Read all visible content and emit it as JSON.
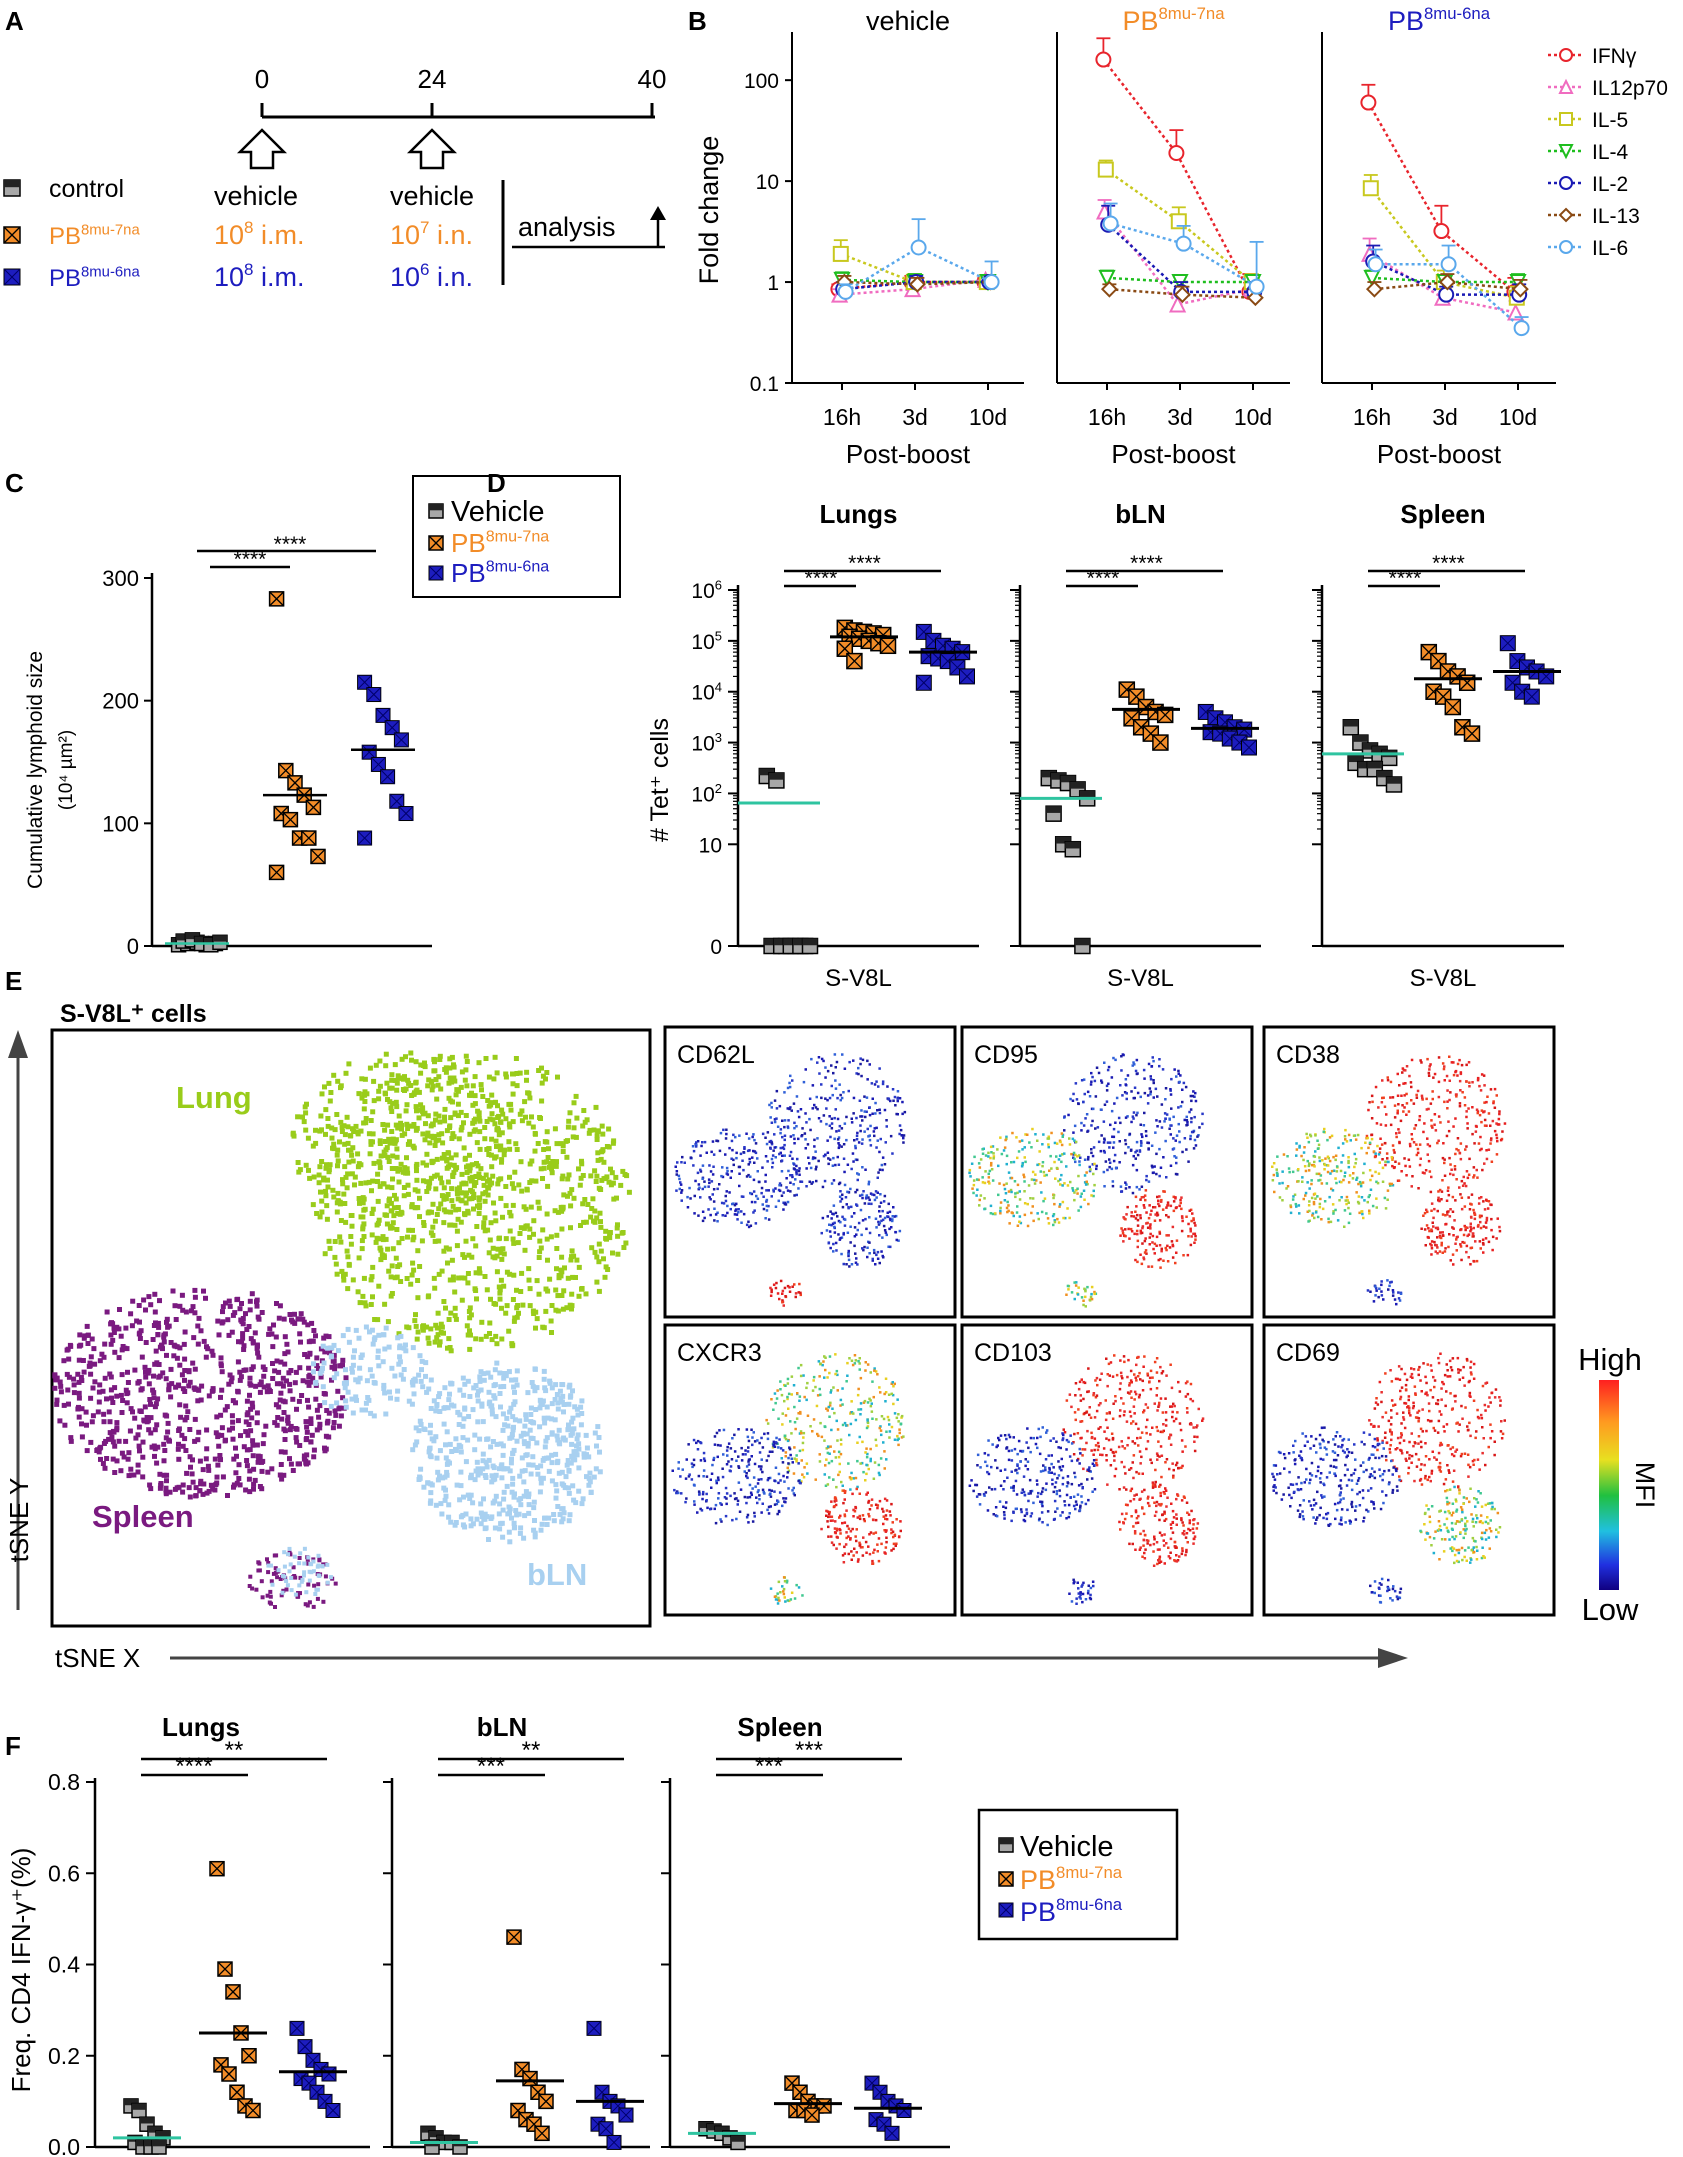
{
  "panels": {
    "A": "A",
    "B": "B",
    "C": "C",
    "D": "D",
    "E": "E",
    "F": "F"
  },
  "colors": {
    "control": "#a8a8a8",
    "pb7": "#f28c28",
    "pb6": "#1d1dbf",
    "mean": "#2ec4a0",
    "lung": "#99cc1a",
    "spleen": "#7a1a80",
    "bln": "#a8d0f0",
    "ifng": "#e8242c",
    "il12p70": "#f06cc0",
    "il5": "#c8c81e",
    "il4": "#1ebe1e",
    "il2": "#1a1ab4",
    "il13": "#8a4a14",
    "il6": "#5aa8ec"
  },
  "panel_a": {
    "timeline": {
      "t0": "0",
      "t24": "24",
      "t40": "40"
    },
    "groups": [
      {
        "name": "control",
        "prime_pre": "",
        "prime_exp": "",
        "prime_route": "",
        "boost_pre": "",
        "boost_exp": "",
        "boost_route": ""
      },
      {
        "name": "PB",
        "sup": "8mu-7na",
        "prime_pre": "10",
        "prime_exp": "8",
        "prime_route": " i.m.",
        "boost_pre": "10",
        "boost_exp": "7",
        "boost_route": " i.n."
      },
      {
        "name": "PB",
        "sup": "8mu-6na",
        "prime_pre": "10",
        "prime_exp": "8",
        "prime_route": " i.m.",
        "boost_pre": "10",
        "boost_exp": "6",
        "boost_route": " i.n."
      }
    ],
    "header_prime": "vehicle",
    "header_boost": "vehicle",
    "analysis": "analysis"
  },
  "panel_b": {
    "chart_data": {
      "type": "line",
      "ylabel": "Fold change",
      "xlabel": "Post-boost",
      "yscale": "log",
      "ylim": [
        0.1,
        300
      ],
      "ytick_labels": [
        "0.1",
        "1",
        "10",
        "100"
      ],
      "categories": [
        "16h",
        "3d",
        "10d"
      ],
      "subplots": [
        {
          "title": "vehicle",
          "title_sup": "",
          "series": [
            {
              "name": "IFNγ",
              "values": [
                0.85,
                1.0,
                1.0
              ],
              "err": [
                0.1,
                0.15,
                0.1
              ]
            },
            {
              "name": "IL12p70",
              "values": [
                0.75,
                0.85,
                1.05
              ],
              "err": [
                0.1,
                0.15,
                0.1
              ]
            },
            {
              "name": "IL-5",
              "values": [
                1.9,
                1.0,
                1.0
              ],
              "err": [
                0.7,
                0.2,
                0.1
              ]
            },
            {
              "name": "IL-4",
              "values": [
                1.05,
                1.0,
                1.0
              ],
              "err": [
                0.2,
                0.2,
                0.1
              ]
            },
            {
              "name": "IL-2",
              "values": [
                0.85,
                1.0,
                1.0
              ],
              "err": [
                0.15,
                0.15,
                0.1
              ]
            },
            {
              "name": "IL-13",
              "values": [
                1.0,
                0.95,
                1.0
              ],
              "err": [
                0.15,
                0.15,
                0.1
              ]
            },
            {
              "name": "IL-6",
              "values": [
                0.8,
                2.2,
                1.0
              ],
              "err": [
                0.15,
                2.0,
                0.6
              ]
            }
          ]
        },
        {
          "title": "PB",
          "title_sup": "8mu-7na",
          "series": [
            {
              "name": "IFNγ",
              "values": [
                160,
                19,
                0.8
              ],
              "err": [
                100,
                13,
                0.4
              ]
            },
            {
              "name": "IL12p70",
              "values": [
                5,
                0.6,
                0.85
              ],
              "err": [
                1.5,
                0.15,
                0.3
              ]
            },
            {
              "name": "IL-5",
              "values": [
                13,
                4,
                1.0
              ],
              "err": [
                3,
                1.5,
                0.2
              ]
            },
            {
              "name": "IL-4",
              "values": [
                1.1,
                1.0,
                1.0
              ],
              "err": [
                0.2,
                0.15,
                0.15
              ]
            },
            {
              "name": "IL-2",
              "values": [
                3.7,
                0.8,
                0.8
              ],
              "err": [
                2,
                0.2,
                0.2
              ]
            },
            {
              "name": "IL-13",
              "values": [
                0.85,
                0.75,
                0.7
              ],
              "err": [
                0.1,
                0.15,
                0.15
              ]
            },
            {
              "name": "IL-6",
              "values": [
                3.8,
                2.4,
                0.9
              ],
              "err": [
                2.2,
                1.2,
                1.6
              ]
            }
          ]
        },
        {
          "title": "PB",
          "title_sup": "8mu-6na",
          "series": [
            {
              "name": "IFNγ",
              "values": [
                60,
                3.2,
                0.8
              ],
              "err": [
                30,
                2.5,
                0.3
              ]
            },
            {
              "name": "IL12p70",
              "values": [
                1.9,
                0.7,
                0.5
              ],
              "err": [
                0.8,
                0.15,
                0.15
              ]
            },
            {
              "name": "IL-5",
              "values": [
                8.5,
                1.0,
                0.7
              ],
              "err": [
                3,
                0.3,
                0.2
              ]
            },
            {
              "name": "IL-4",
              "values": [
                1.1,
                1.0,
                1.0
              ],
              "err": [
                0.2,
                0.15,
                0.2
              ]
            },
            {
              "name": "IL-2",
              "values": [
                1.6,
                0.75,
                0.75
              ],
              "err": [
                0.7,
                0.15,
                0.2
              ]
            },
            {
              "name": "IL-13",
              "values": [
                0.85,
                1.0,
                0.85
              ],
              "err": [
                0.15,
                0.2,
                0.2
              ]
            },
            {
              "name": "IL-6",
              "values": [
                1.5,
                1.5,
                0.35
              ],
              "err": [
                0.6,
                0.8,
                0.1
              ]
            }
          ]
        }
      ]
    }
  },
  "panel_c": {
    "chart_data": {
      "type": "scatter",
      "ylabel": "Cumulative lymphoid size",
      "ylabel_unit": "(10⁴ µm²)",
      "ylim": [
        0,
        300
      ],
      "ytick_labels": [
        "0",
        "100",
        "200",
        "300"
      ],
      "groups": [
        {
          "name": "Vehicle",
          "values": [
            1,
            2,
            3,
            1,
            2,
            4,
            5,
            2,
            1,
            3
          ],
          "mean": 2
        },
        {
          "name": "PB",
          "sup": "8mu-7na",
          "values": [
            283,
            143,
            133,
            123,
            113,
            108,
            103,
            88,
            88,
            73,
            60
          ],
          "mean": 123
        },
        {
          "name": "PB",
          "sup": "8mu-6na",
          "values": [
            215,
            205,
            188,
            178,
            168,
            158,
            148,
            138,
            118,
            108,
            88
          ],
          "mean": 160
        }
      ],
      "sig": [
        {
          "label": "****"
        },
        {
          "label": "****"
        }
      ]
    }
  },
  "panel_d": {
    "chart_data": {
      "type": "scatter",
      "ylabel": "# Tet⁺ cells",
      "yscale": "log",
      "ytick_labels": [
        "0",
        "10",
        "10²",
        "10³",
        "10⁴",
        "10⁵",
        "10⁶"
      ],
      "xlabel": "S-V8L",
      "subplots": [
        {
          "title": "Lungs",
          "sig": [
            "****",
            "****"
          ],
          "groups": [
            {
              "name": "Vehicle",
              "values": [
                220,
                180,
                0,
                0,
                0,
                0,
                0,
                0,
                0,
                0
              ],
              "mean": 65
            },
            {
              "name": "PB8mu-7na",
              "values": [
                180000,
                160000,
                150000,
                140000,
                130000,
                120000,
                110000,
                100000,
                90000,
                80000,
                70000,
                40000
              ],
              "mean": 120000
            },
            {
              "name": "PB8mu-6na",
              "values": [
                150000,
                100000,
                80000,
                70000,
                60000,
                50000,
                45000,
                40000,
                30000,
                20000,
                15000
              ],
              "mean": 60000
            }
          ]
        },
        {
          "title": "bLN",
          "sig": [
            "****",
            "****"
          ],
          "groups": [
            {
              "name": "Vehicle",
              "values": [
                200,
                180,
                160,
                120,
                80,
                40,
                10,
                8,
                0
              ],
              "mean": 80
            },
            {
              "name": "PB8mu-7na",
              "values": [
                11000,
                8000,
                5000,
                4000,
                3500,
                3000,
                2000,
                1500,
                1000
              ],
              "mean": 4500
            },
            {
              "name": "PB8mu-6na",
              "values": [
                4000,
                3000,
                2500,
                2000,
                1800,
                1600,
                1500,
                1200,
                1000,
                800
              ],
              "mean": 1900
            }
          ]
        },
        {
          "title": "Spleen",
          "sig": [
            "****",
            "****"
          ],
          "groups": [
            {
              "name": "Vehicle",
              "values": [
                2000,
                1000,
                700,
                600,
                500,
                400,
                300,
                300,
                200,
                150
              ],
              "mean": 600
            },
            {
              "name": "PB8mu-7na",
              "values": [
                60000,
                40000,
                25000,
                20000,
                15000,
                10000,
                8000,
                5000,
                2000,
                1500
              ],
              "mean": 18000
            },
            {
              "name": "PB8mu-6na",
              "values": [
                90000,
                40000,
                30000,
                25000,
                20000,
                15000,
                10000,
                8000
              ],
              "mean": 25000
            }
          ]
        }
      ]
    }
  },
  "panel_e": {
    "title": "S-V8L⁺ cells",
    "clusters": {
      "lung": "Lung",
      "spleen": "Spleen",
      "bln": "bLN"
    },
    "axis_x": "tSNE X",
    "axis_y": "tSNE Y",
    "markers": [
      "CD62L",
      "CD95",
      "CD38",
      "CXCR3",
      "CD103",
      "CD69"
    ],
    "scale_high": "High",
    "scale_low": "Low",
    "scale_label": "MFI"
  },
  "panel_f": {
    "chart_data": {
      "type": "scatter",
      "ylabel": "Freq. CD4 IFN-γ⁺(%)",
      "ylim": [
        0,
        0.8
      ],
      "ytick_labels": [
        "0.0",
        "0.2",
        "0.4",
        "0.6",
        "0.8"
      ],
      "subplots": [
        {
          "title": "Lungs",
          "sig": [
            "****",
            "**"
          ],
          "groups": [
            {
              "name": "Vehicle",
              "values": [
                0.09,
                0.08,
                0.05,
                0.03,
                0.02,
                0.01,
                0.0,
                0.0,
                0.0
              ],
              "mean": 0.02
            },
            {
              "name": "PB8mu-7na",
              "values": [
                0.61,
                0.39,
                0.34,
                0.25,
                0.2,
                0.18,
                0.16,
                0.12,
                0.09,
                0.08
              ],
              "mean": 0.25
            },
            {
              "name": "PB8mu-6na",
              "values": [
                0.26,
                0.22,
                0.19,
                0.17,
                0.16,
                0.15,
                0.14,
                0.12,
                0.1,
                0.08
              ],
              "mean": 0.165
            }
          ]
        },
        {
          "title": "bLN",
          "sig": [
            "***",
            "**"
          ],
          "groups": [
            {
              "name": "Vehicle",
              "values": [
                0.03,
                0.02,
                0.01,
                0.01,
                0.0,
                0.0
              ],
              "mean": 0.01
            },
            {
              "name": "PB8mu-7na",
              "values": [
                0.46,
                0.17,
                0.15,
                0.12,
                0.1,
                0.08,
                0.06,
                0.05,
                0.03
              ],
              "mean": 0.145
            },
            {
              "name": "PB8mu-6na",
              "values": [
                0.26,
                0.12,
                0.1,
                0.09,
                0.07,
                0.05,
                0.04,
                0.01
              ],
              "mean": 0.1
            }
          ]
        },
        {
          "title": "Spleen",
          "sig": [
            "***",
            "***"
          ],
          "groups": [
            {
              "name": "Vehicle",
              "values": [
                0.04,
                0.035,
                0.03,
                0.02,
                0.01
              ],
              "mean": 0.03
            },
            {
              "name": "PB8mu-7na",
              "values": [
                0.14,
                0.12,
                0.1,
                0.09,
                0.09,
                0.08,
                0.08,
                0.07
              ],
              "mean": 0.095
            },
            {
              "name": "PB8mu-6na",
              "values": [
                0.14,
                0.12,
                0.1,
                0.09,
                0.08,
                0.06,
                0.05,
                0.03
              ],
              "mean": 0.085
            }
          ]
        }
      ]
    }
  },
  "legend": {
    "vehicle": "Vehicle",
    "pb": "PB",
    "sup7": "8mu-7na",
    "sup6": "8mu-6na"
  }
}
